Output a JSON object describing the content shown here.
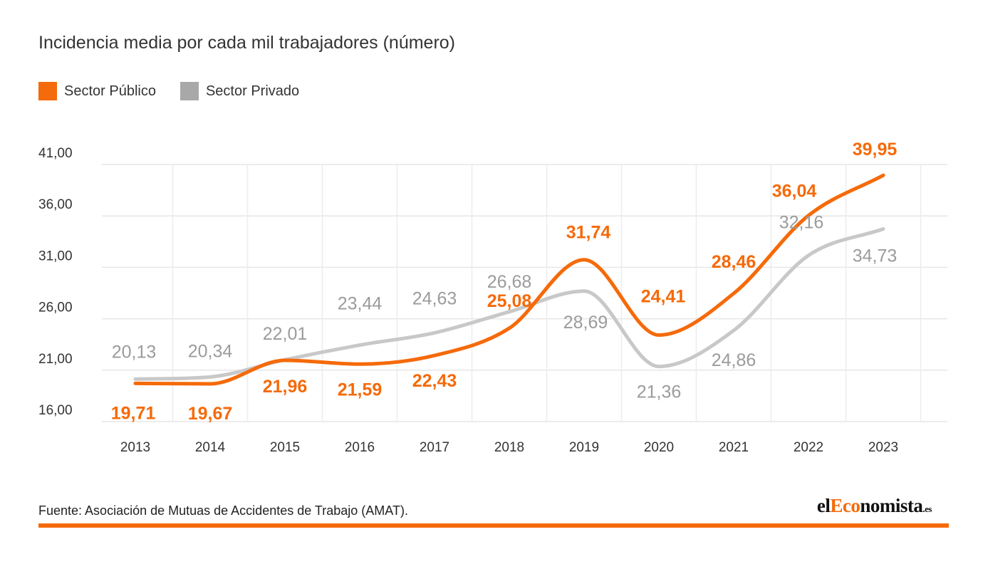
{
  "chart_data": {
    "type": "line",
    "title": "Incidencia media por cada mil trabajadores (número)",
    "categories": [
      "2013",
      "2014",
      "2015",
      "2016",
      "2017",
      "2018",
      "2019",
      "2020",
      "2021",
      "2022",
      "2023"
    ],
    "series": [
      {
        "name": "Sector Público",
        "color": "#f56a0a",
        "values": [
          19.71,
          19.67,
          21.96,
          21.59,
          22.43,
          25.08,
          31.74,
          24.41,
          28.46,
          36.04,
          39.95
        ],
        "labels": [
          "19,71",
          "19,67",
          "21,96",
          "21,59",
          "22,43",
          "25,08",
          "31,74",
          "24,41",
          "28,46",
          "36,04",
          "39,95"
        ]
      },
      {
        "name": "Sector Privado",
        "color": "#c8c8c8",
        "label_color": "#9b9b9b",
        "values": [
          20.13,
          20.34,
          22.01,
          23.44,
          24.63,
          26.68,
          28.69,
          21.36,
          24.86,
          32.16,
          34.73
        ],
        "labels": [
          "20,13",
          "20,34",
          "22,01",
          "23,44",
          "24,63",
          "26,68",
          "28,69",
          "21,36",
          "24,86",
          "32,16",
          "34,73"
        ]
      }
    ],
    "y_ticks": [
      16,
      21,
      26,
      31,
      36,
      41
    ],
    "y_tick_labels": [
      "16,00",
      "21,00",
      "26,00",
      "31,00",
      "36,00",
      "41,00"
    ],
    "ylim": [
      16,
      41
    ],
    "grid": true,
    "legend_position": "top-left"
  },
  "legend": {
    "public_label": "Sector Público",
    "private_label": "Sector Privado",
    "public_color": "#f56a0a",
    "private_color": "#a8a8a8"
  },
  "footer": {
    "source": "Fuente: Asociación de Mutuas de Accidentes de Trabajo (AMAT).",
    "brand_prefix": "el",
    "brand_accent": "Eco",
    "brand_suffix": "nomista",
    "brand_tld": ".es",
    "bar_color": "#f56a0a"
  }
}
